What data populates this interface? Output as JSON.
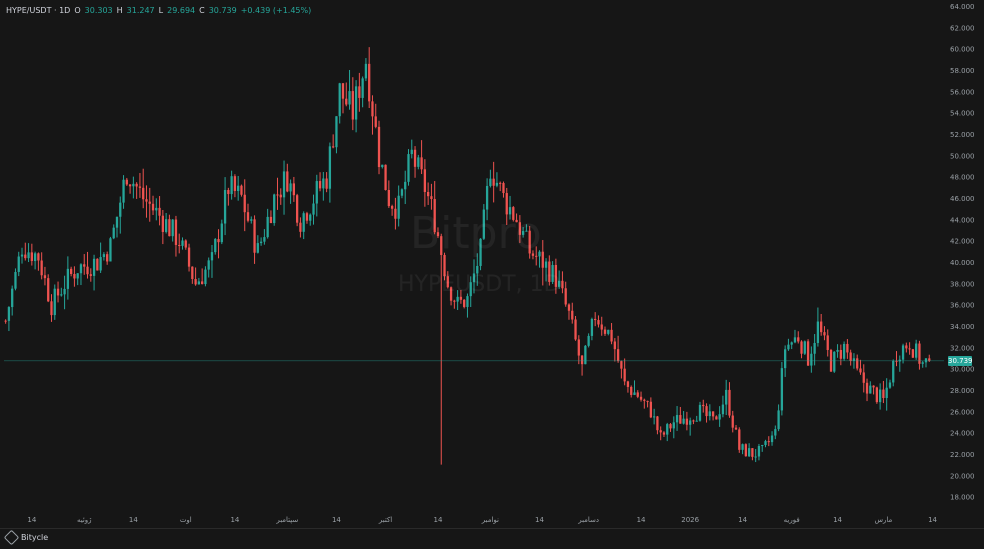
{
  "legend": {
    "symbol": "HYPE/USDT · 1D",
    "open_label": "O",
    "open": "30.303",
    "high_label": "H",
    "high": "31.247",
    "low_label": "L",
    "low": "29.694",
    "close_label": "C",
    "close": "30.739",
    "change": "+0.439 (+1.45%)"
  },
  "watermark": {
    "line1": "Bitpro",
    "line2": "HYPEUSDT, 1D"
  },
  "footer": {
    "brand": "Bitycle"
  },
  "colors": {
    "up": "#26a69a",
    "down": "#ef5350",
    "grid": "#232323",
    "axis_text": "#9aa0a6",
    "last_price_line": "#26a69a"
  },
  "chart_data": {
    "type": "candlestick",
    "title": "",
    "xlabel": "",
    "ylabel": "",
    "ylim": [
      16,
      64
    ],
    "grid": false,
    "last_price": 30.739,
    "y_ticks": [
      {
        "value": 64,
        "label": "64.000"
      },
      {
        "value": 62,
        "label": "62.000"
      },
      {
        "value": 60,
        "label": "60.000"
      },
      {
        "value": 58,
        "label": "58.000"
      },
      {
        "value": 56,
        "label": "56.000"
      },
      {
        "value": 54,
        "label": "54.000"
      },
      {
        "value": 52,
        "label": "52.000"
      },
      {
        "value": 50,
        "label": "50.000"
      },
      {
        "value": 48,
        "label": "48.000"
      },
      {
        "value": 46,
        "label": "46.000"
      },
      {
        "value": 44,
        "label": "44.000"
      },
      {
        "value": 42,
        "label": "42.000"
      },
      {
        "value": 40,
        "label": "40.000"
      },
      {
        "value": 38,
        "label": "38.000"
      },
      {
        "value": 36,
        "label": "36.000"
      },
      {
        "value": 34,
        "label": "34.000"
      },
      {
        "value": 32,
        "label": "32.000"
      },
      {
        "value": 30,
        "label": "30.000"
      },
      {
        "value": 28,
        "label": "28.000"
      },
      {
        "value": 26,
        "label": "26.000"
      },
      {
        "value": 24,
        "label": "24.000"
      },
      {
        "value": 22,
        "label": "22.000"
      },
      {
        "value": 20,
        "label": "20.000"
      },
      {
        "value": 18,
        "label": "18.000"
      }
    ],
    "x_ticks": [
      {
        "index": 8,
        "label": "14"
      },
      {
        "index": 24,
        "label": "ژوئیه"
      },
      {
        "index": 39,
        "label": "14"
      },
      {
        "index": 55,
        "label": "اوت"
      },
      {
        "index": 70,
        "label": "14"
      },
      {
        "index": 86,
        "label": "سپتامبر"
      },
      {
        "index": 101,
        "label": "14"
      },
      {
        "index": 116,
        "label": "اکتبر"
      },
      {
        "index": 132,
        "label": "14"
      },
      {
        "index": 148,
        "label": "نوامبر"
      },
      {
        "index": 163,
        "label": "14"
      },
      {
        "index": 178,
        "label": "دسامبر"
      },
      {
        "index": 194,
        "label": "14"
      },
      {
        "index": 209,
        "label": "2026"
      },
      {
        "index": 225,
        "label": "14"
      },
      {
        "index": 240,
        "label": "فوریه"
      },
      {
        "index": 254,
        "label": "14"
      },
      {
        "index": 268,
        "label": "مارس"
      },
      {
        "index": 283,
        "label": "14"
      }
    ],
    "keypoints": [
      [
        0,
        34.5
      ],
      [
        5,
        41.5
      ],
      [
        10,
        40.5
      ],
      [
        14,
        36
      ],
      [
        18,
        38
      ],
      [
        22,
        39.5
      ],
      [
        28,
        40
      ],
      [
        32,
        41.5
      ],
      [
        37,
        48.5
      ],
      [
        42,
        46
      ],
      [
        48,
        44
      ],
      [
        53,
        42
      ],
      [
        58,
        38
      ],
      [
        63,
        40
      ],
      [
        68,
        47
      ],
      [
        72,
        46
      ],
      [
        77,
        41
      ],
      [
        82,
        46
      ],
      [
        86,
        48
      ],
      [
        90,
        44
      ],
      [
        94,
        46
      ],
      [
        98,
        48
      ],
      [
        102,
        56
      ],
      [
        106,
        54
      ],
      [
        110,
        59
      ],
      [
        114,
        50
      ],
      [
        117,
        46
      ],
      [
        120,
        45
      ],
      [
        124,
        50
      ],
      [
        128,
        47
      ],
      [
        131,
        44
      ],
      [
        135,
        38
      ],
      [
        138,
        36
      ],
      [
        141,
        36.5
      ],
      [
        145,
        41
      ],
      [
        148,
        49
      ],
      [
        152,
        46
      ],
      [
        156,
        44
      ],
      [
        160,
        41
      ],
      [
        164,
        40
      ],
      [
        168,
        38.5
      ],
      [
        172,
        35
      ],
      [
        176,
        30
      ],
      [
        180,
        35
      ],
      [
        185,
        33
      ],
      [
        189,
        28.5
      ],
      [
        193,
        27.5
      ],
      [
        197,
        26
      ],
      [
        200,
        23.5
      ],
      [
        204,
        25
      ],
      [
        208,
        25.5
      ],
      [
        212,
        26
      ],
      [
        216,
        25
      ],
      [
        220,
        27.5
      ],
      [
        224,
        22.5
      ],
      [
        228,
        22
      ],
      [
        231,
        22.2
      ],
      [
        235,
        24
      ],
      [
        238,
        32
      ],
      [
        242,
        33
      ],
      [
        245,
        31
      ],
      [
        248,
        34
      ],
      [
        252,
        30.5
      ],
      [
        256,
        32
      ],
      [
        260,
        29.5
      ],
      [
        264,
        28
      ],
      [
        268,
        27
      ],
      [
        272,
        31.5
      ],
      [
        276,
        32.5
      ],
      [
        280,
        30.4
      ],
      [
        282,
        30.739
      ]
    ],
    "special_wicks": [
      {
        "index": 133,
        "low": 21,
        "high": 40
      }
    ]
  }
}
